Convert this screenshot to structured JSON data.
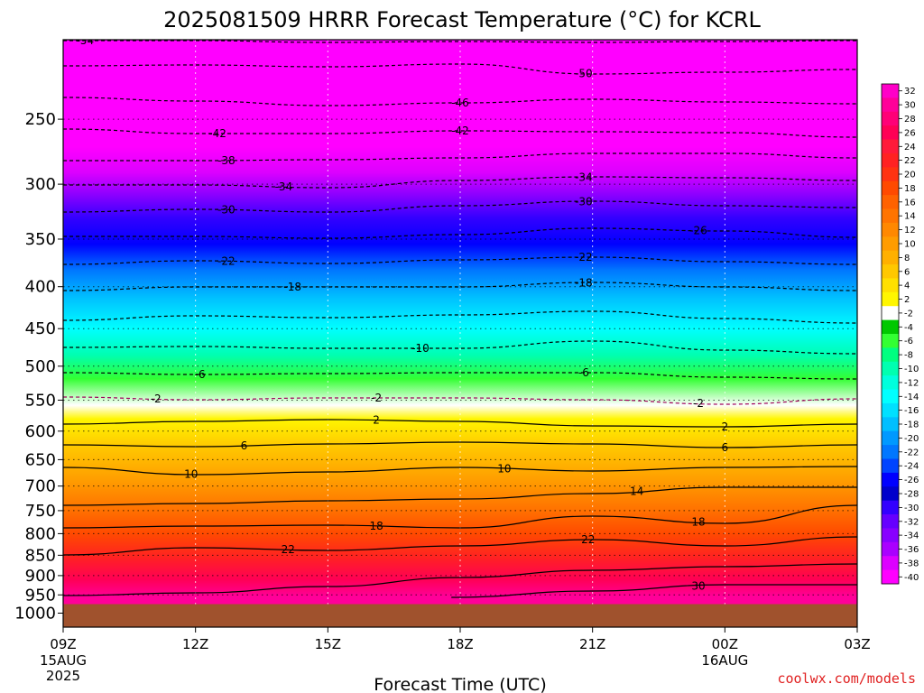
{
  "title": "2025081509 HRRR Forecast Temperature (°C) for KCRL",
  "credit": "coolwx.com/models",
  "chart_data": {
    "type": "heatmap",
    "title": "2025081509 HRRR Forecast Temperature (°C) for KCRL",
    "xlabel": "Forecast Time (UTC)",
    "ylabel": "",
    "x_ticks": [
      {
        "label": "09Z",
        "sub": [
          "15AUG",
          "2025"
        ]
      },
      {
        "label": "12Z",
        "sub": []
      },
      {
        "label": "15Z",
        "sub": []
      },
      {
        "label": "18Z",
        "sub": []
      },
      {
        "label": "21Z",
        "sub": []
      },
      {
        "label": "00Z",
        "sub": [
          "16AUG"
        ]
      },
      {
        "label": "03Z",
        "sub": []
      }
    ],
    "x_hours": [
      0,
      3,
      6,
      9,
      12,
      15,
      18
    ],
    "y_ticks": [
      250,
      300,
      350,
      400,
      450,
      500,
      550,
      600,
      650,
      700,
      750,
      800,
      850,
      900,
      950,
      1000
    ],
    "y_range_hpa": [
      200,
      1040
    ],
    "y_scale": "log-pressure",
    "surface_pressure_hpa": 975,
    "colorbar_levels": [
      32,
      30,
      28,
      26,
      24,
      22,
      20,
      18,
      16,
      14,
      12,
      10,
      8,
      6,
      4,
      2,
      -2,
      -4,
      -6,
      -8,
      -10,
      -12,
      -14,
      -16,
      -18,
      -20,
      -22,
      -24,
      -26,
      -28,
      -30,
      -32,
      -34,
      -36,
      -38,
      -40
    ],
    "colorbar_colors": [
      "#ff00c8",
      "#ff0099",
      "#ff0077",
      "#ff0055",
      "#ff1a3a",
      "#ff2222",
      "#ff3311",
      "#ff4a00",
      "#ff6200",
      "#ff7400",
      "#ff8800",
      "#ff9c00",
      "#ffb000",
      "#ffc800",
      "#ffe000",
      "#fff600",
      "#ffffff",
      "#00c800",
      "#33ff33",
      "#00ff80",
      "#00ffb0",
      "#00ffdd",
      "#00ffff",
      "#00e0ff",
      "#00bfff",
      "#0099ff",
      "#0077ff",
      "#0044ff",
      "#0000ff",
      "#0000cc",
      "#3300ff",
      "#6600ff",
      "#8800ff",
      "#aa00ff",
      "#dd00ff",
      "#ff00ff"
    ],
    "temperature_profile": [
      {
        "p": 210,
        "t": -56
      },
      {
        "p": 230,
        "t": -50
      },
      {
        "p": 250,
        "t": -46
      },
      {
        "p": 270,
        "t": -42
      },
      {
        "p": 290,
        "t": -38
      },
      {
        "p": 310,
        "t": -34
      },
      {
        "p": 330,
        "t": -30
      },
      {
        "p": 355,
        "t": -26
      },
      {
        "p": 382,
        "t": -22
      },
      {
        "p": 412,
        "t": -18
      },
      {
        "p": 450,
        "t": -14
      },
      {
        "p": 485,
        "t": -10
      },
      {
        "p": 518,
        "t": -6
      },
      {
        "p": 558,
        "t": -2
      },
      {
        "p": 580,
        "t": 2
      },
      {
        "p": 627,
        "t": 6
      },
      {
        "p": 690,
        "t": 10
      },
      {
        "p": 745,
        "t": 14
      },
      {
        "p": 800,
        "t": 18
      },
      {
        "p": 855,
        "t": 22
      },
      {
        "p": 910,
        "t": 26
      },
      {
        "p": 955,
        "t": 30
      }
    ],
    "contours": [
      {
        "value": -54,
        "style": "dashed",
        "labels": [
          {
            "hour": 0.5,
            "text": "-54"
          }
        ],
        "points": [
          [
            0,
            45
          ],
          [
            3,
            45
          ],
          [
            6,
            47
          ],
          [
            9,
            46
          ],
          [
            12,
            47
          ],
          [
            15,
            46
          ],
          [
            18,
            45
          ]
        ]
      },
      {
        "value": -50,
        "style": "dashed",
        "labels": [
          {
            "hour": 11.8,
            "text": "-50"
          }
        ],
        "points": [
          [
            0,
            73
          ],
          [
            3,
            72
          ],
          [
            6,
            74
          ],
          [
            9,
            71
          ],
          [
            12,
            82
          ],
          [
            15,
            80
          ],
          [
            18,
            77
          ]
        ]
      },
      {
        "value": -46,
        "style": "dashed",
        "labels": [
          {
            "hour": 9.0,
            "text": "-46"
          }
        ],
        "points": [
          [
            0,
            108
          ],
          [
            3,
            112
          ],
          [
            6,
            117
          ],
          [
            9,
            114
          ],
          [
            12,
            110
          ],
          [
            15,
            113
          ],
          [
            18,
            115
          ]
        ]
      },
      {
        "value": -42,
        "style": "dashed",
        "labels": [
          {
            "hour": 3.5,
            "text": "-42"
          },
          {
            "hour": 9.0,
            "text": "-42"
          }
        ],
        "points": [
          [
            0,
            143
          ],
          [
            3,
            148
          ],
          [
            6,
            148
          ],
          [
            9,
            145
          ],
          [
            12,
            146
          ],
          [
            15,
            147
          ],
          [
            18,
            152
          ]
        ]
      },
      {
        "value": -38,
        "style": "dashed",
        "labels": [
          {
            "hour": 3.7,
            "text": "-38"
          }
        ],
        "points": [
          [
            0,
            178
          ],
          [
            3,
            178
          ],
          [
            6,
            177
          ],
          [
            9,
            175
          ],
          [
            12,
            170
          ],
          [
            15,
            170
          ],
          [
            18,
            175
          ]
        ]
      },
      {
        "value": -34,
        "style": "dashed",
        "labels": [
          {
            "hour": 5.0,
            "text": "-34"
          },
          {
            "hour": 11.8,
            "text": "-34"
          }
        ],
        "points": [
          [
            0,
            205
          ],
          [
            3,
            205
          ],
          [
            6,
            208
          ],
          [
            9,
            200
          ],
          [
            12,
            196
          ],
          [
            15,
            197
          ],
          [
            18,
            200
          ]
        ]
      },
      {
        "value": -30,
        "style": "dashed",
        "labels": [
          {
            "hour": 3.7,
            "text": "-30"
          },
          {
            "hour": 11.8,
            "text": "-30"
          }
        ],
        "points": [
          [
            0,
            235
          ],
          [
            3,
            232
          ],
          [
            6,
            235
          ],
          [
            9,
            228
          ],
          [
            12,
            223
          ],
          [
            15,
            228
          ],
          [
            18,
            230
          ]
        ]
      },
      {
        "value": -26,
        "style": "dashed",
        "labels": [
          {
            "hour": 14.4,
            "text": "-26"
          }
        ],
        "points": [
          [
            0,
            262
          ],
          [
            3,
            262
          ],
          [
            6,
            264
          ],
          [
            9,
            260
          ],
          [
            12,
            253
          ],
          [
            15,
            256
          ],
          [
            18,
            263
          ]
        ]
      },
      {
        "value": -22,
        "style": "dashed",
        "labels": [
          {
            "hour": 3.7,
            "text": "-22"
          },
          {
            "hour": 11.8,
            "text": "-22"
          }
        ],
        "points": [
          [
            0,
            293
          ],
          [
            3,
            289
          ],
          [
            6,
            292
          ],
          [
            9,
            288
          ],
          [
            12,
            285
          ],
          [
            15,
            290
          ],
          [
            18,
            293
          ]
        ]
      },
      {
        "value": -18,
        "style": "dashed",
        "labels": [
          {
            "hour": 5.2,
            "text": "-18"
          },
          {
            "hour": 11.8,
            "text": "-18"
          }
        ],
        "points": [
          [
            0,
            322
          ],
          [
            3,
            318
          ],
          [
            6,
            318
          ],
          [
            9,
            318
          ],
          [
            12,
            313
          ],
          [
            15,
            318
          ],
          [
            18,
            322
          ]
        ]
      },
      {
        "value": -14,
        "style": "dashed",
        "labels": [],
        "points": [
          [
            0,
            355
          ],
          [
            3,
            350
          ],
          [
            6,
            352
          ],
          [
            9,
            349
          ],
          [
            12,
            345
          ],
          [
            15,
            353
          ],
          [
            18,
            358
          ]
        ]
      },
      {
        "value": -10,
        "style": "dashed",
        "labels": [
          {
            "hour": 8.1,
            "text": "-10"
          }
        ],
        "points": [
          [
            0,
            385
          ],
          [
            3,
            384
          ],
          [
            6,
            386
          ],
          [
            9,
            386
          ],
          [
            12,
            378
          ],
          [
            15,
            388
          ],
          [
            18,
            392
          ]
        ]
      },
      {
        "value": -6,
        "style": "dashed",
        "labels": [
          {
            "hour": 3.1,
            "text": "-6"
          },
          {
            "hour": 11.8,
            "text": "-6"
          }
        ],
        "points": [
          [
            0,
            413
          ],
          [
            3,
            415
          ],
          [
            6,
            414
          ],
          [
            9,
            413
          ],
          [
            12,
            413
          ],
          [
            15,
            418
          ],
          [
            18,
            420
          ]
        ]
      },
      {
        "value": -2,
        "style": "dashed",
        "labels": [
          {
            "hour": 2.1,
            "text": "-2"
          },
          {
            "hour": 7.1,
            "text": "-2"
          },
          {
            "hour": 14.4,
            "text": "-2"
          }
        ],
        "points": [
          [
            0,
            440
          ],
          [
            3,
            443
          ],
          [
            6,
            441
          ],
          [
            9,
            441
          ],
          [
            12,
            443
          ],
          [
            15,
            448
          ],
          [
            18,
            442
          ]
        ]
      },
      {
        "value": 2,
        "style": "solid",
        "labels": [
          {
            "hour": 7.1,
            "text": "2"
          },
          {
            "hour": 15.0,
            "text": "2"
          }
        ],
        "points": [
          [
            0,
            470
          ],
          [
            3,
            467
          ],
          [
            6,
            465
          ],
          [
            9,
            467
          ],
          [
            12,
            472
          ],
          [
            15,
            473
          ],
          [
            18,
            470
          ]
        ]
      },
      {
        "value": 6,
        "style": "solid",
        "labels": [
          {
            "hour": 4.1,
            "text": "6"
          },
          {
            "hour": 15.0,
            "text": "6"
          }
        ],
        "points": [
          [
            0,
            493
          ],
          [
            3,
            495
          ],
          [
            6,
            492
          ],
          [
            9,
            490
          ],
          [
            12,
            492
          ],
          [
            15,
            496
          ],
          [
            18,
            493
          ]
        ]
      },
      {
        "value": 10,
        "style": "solid",
        "labels": [
          {
            "hour": 2.9,
            "text": "10"
          },
          {
            "hour": 10.0,
            "text": "10"
          }
        ],
        "points": [
          [
            0,
            518
          ],
          [
            3,
            526
          ],
          [
            6,
            523
          ],
          [
            9,
            518
          ],
          [
            12,
            522
          ],
          [
            15,
            518
          ],
          [
            18,
            517
          ]
        ]
      },
      {
        "value": 14,
        "style": "solid",
        "labels": [
          {
            "hour": 13.0,
            "text": "14"
          }
        ],
        "points": [
          [
            0,
            560
          ],
          [
            3,
            558
          ],
          [
            6,
            555
          ],
          [
            9,
            553
          ],
          [
            12,
            547
          ],
          [
            15,
            540
          ],
          [
            18,
            540
          ]
        ]
      },
      {
        "value": 18,
        "style": "solid",
        "labels": [
          {
            "hour": 7.1,
            "text": "18"
          },
          {
            "hour": 14.4,
            "text": "18"
          }
        ],
        "points": [
          [
            0,
            585
          ],
          [
            3,
            583
          ],
          [
            6,
            582
          ],
          [
            9,
            585
          ],
          [
            12,
            572
          ],
          [
            15,
            580
          ],
          [
            18,
            560
          ]
        ]
      },
      {
        "value": 22,
        "style": "solid",
        "labels": [
          {
            "hour": 5.1,
            "text": "22"
          },
          {
            "hour": 11.9,
            "text": "22"
          }
        ],
        "points": [
          [
            0,
            615
          ],
          [
            3,
            607
          ],
          [
            6,
            610
          ],
          [
            9,
            605
          ],
          [
            12,
            598
          ],
          [
            15,
            605
          ],
          [
            18,
            595
          ]
        ]
      },
      {
        "value": 26,
        "style": "solid",
        "labels": [],
        "points": [
          [
            0,
            660
          ],
          [
            3,
            657
          ],
          [
            6,
            650
          ],
          [
            9,
            640
          ],
          [
            12,
            632
          ],
          [
            15,
            628
          ],
          [
            18,
            625
          ]
        ]
      },
      {
        "value": 30,
        "style": "solid",
        "labels": [
          {
            "hour": 14.4,
            "text": "30"
          }
        ],
        "points": [
          [
            8.8,
            662
          ],
          [
            12,
            655
          ],
          [
            15,
            648
          ],
          [
            18,
            648
          ]
        ]
      }
    ],
    "grid": true
  }
}
